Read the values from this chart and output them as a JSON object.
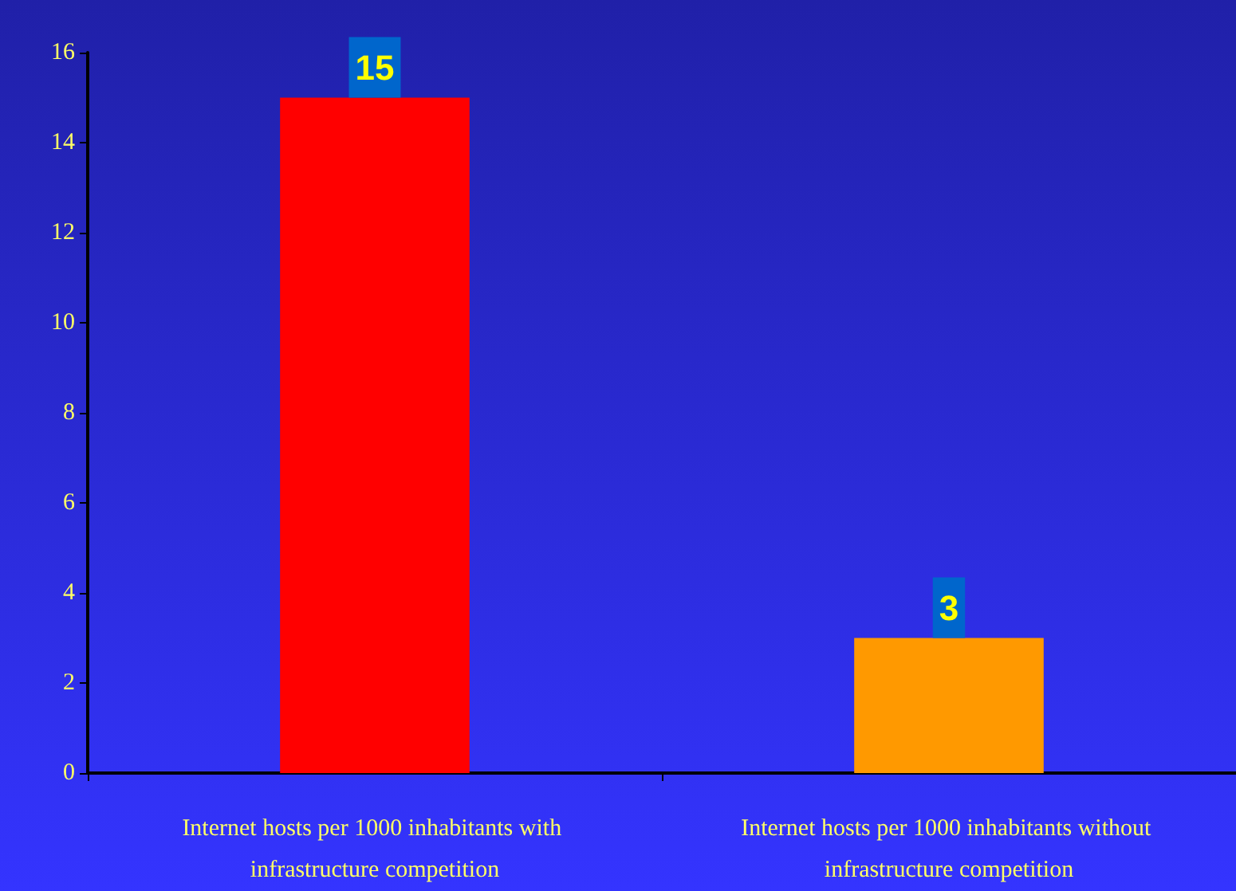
{
  "chart_data": {
    "type": "bar",
    "categories": [
      "Internet hosts per 1000 inhabitants with infrastructure competition",
      "Internet hosts per 1000 inhabitants without infrastructure competition"
    ],
    "values": [
      15,
      3
    ],
    "colors": [
      "#ff0000",
      "#ff9900"
    ],
    "ylim": [
      0,
      16
    ],
    "yticks": [
      0,
      2,
      4,
      6,
      8,
      10,
      12,
      14,
      16
    ],
    "data_labels": true,
    "grid": false
  }
}
